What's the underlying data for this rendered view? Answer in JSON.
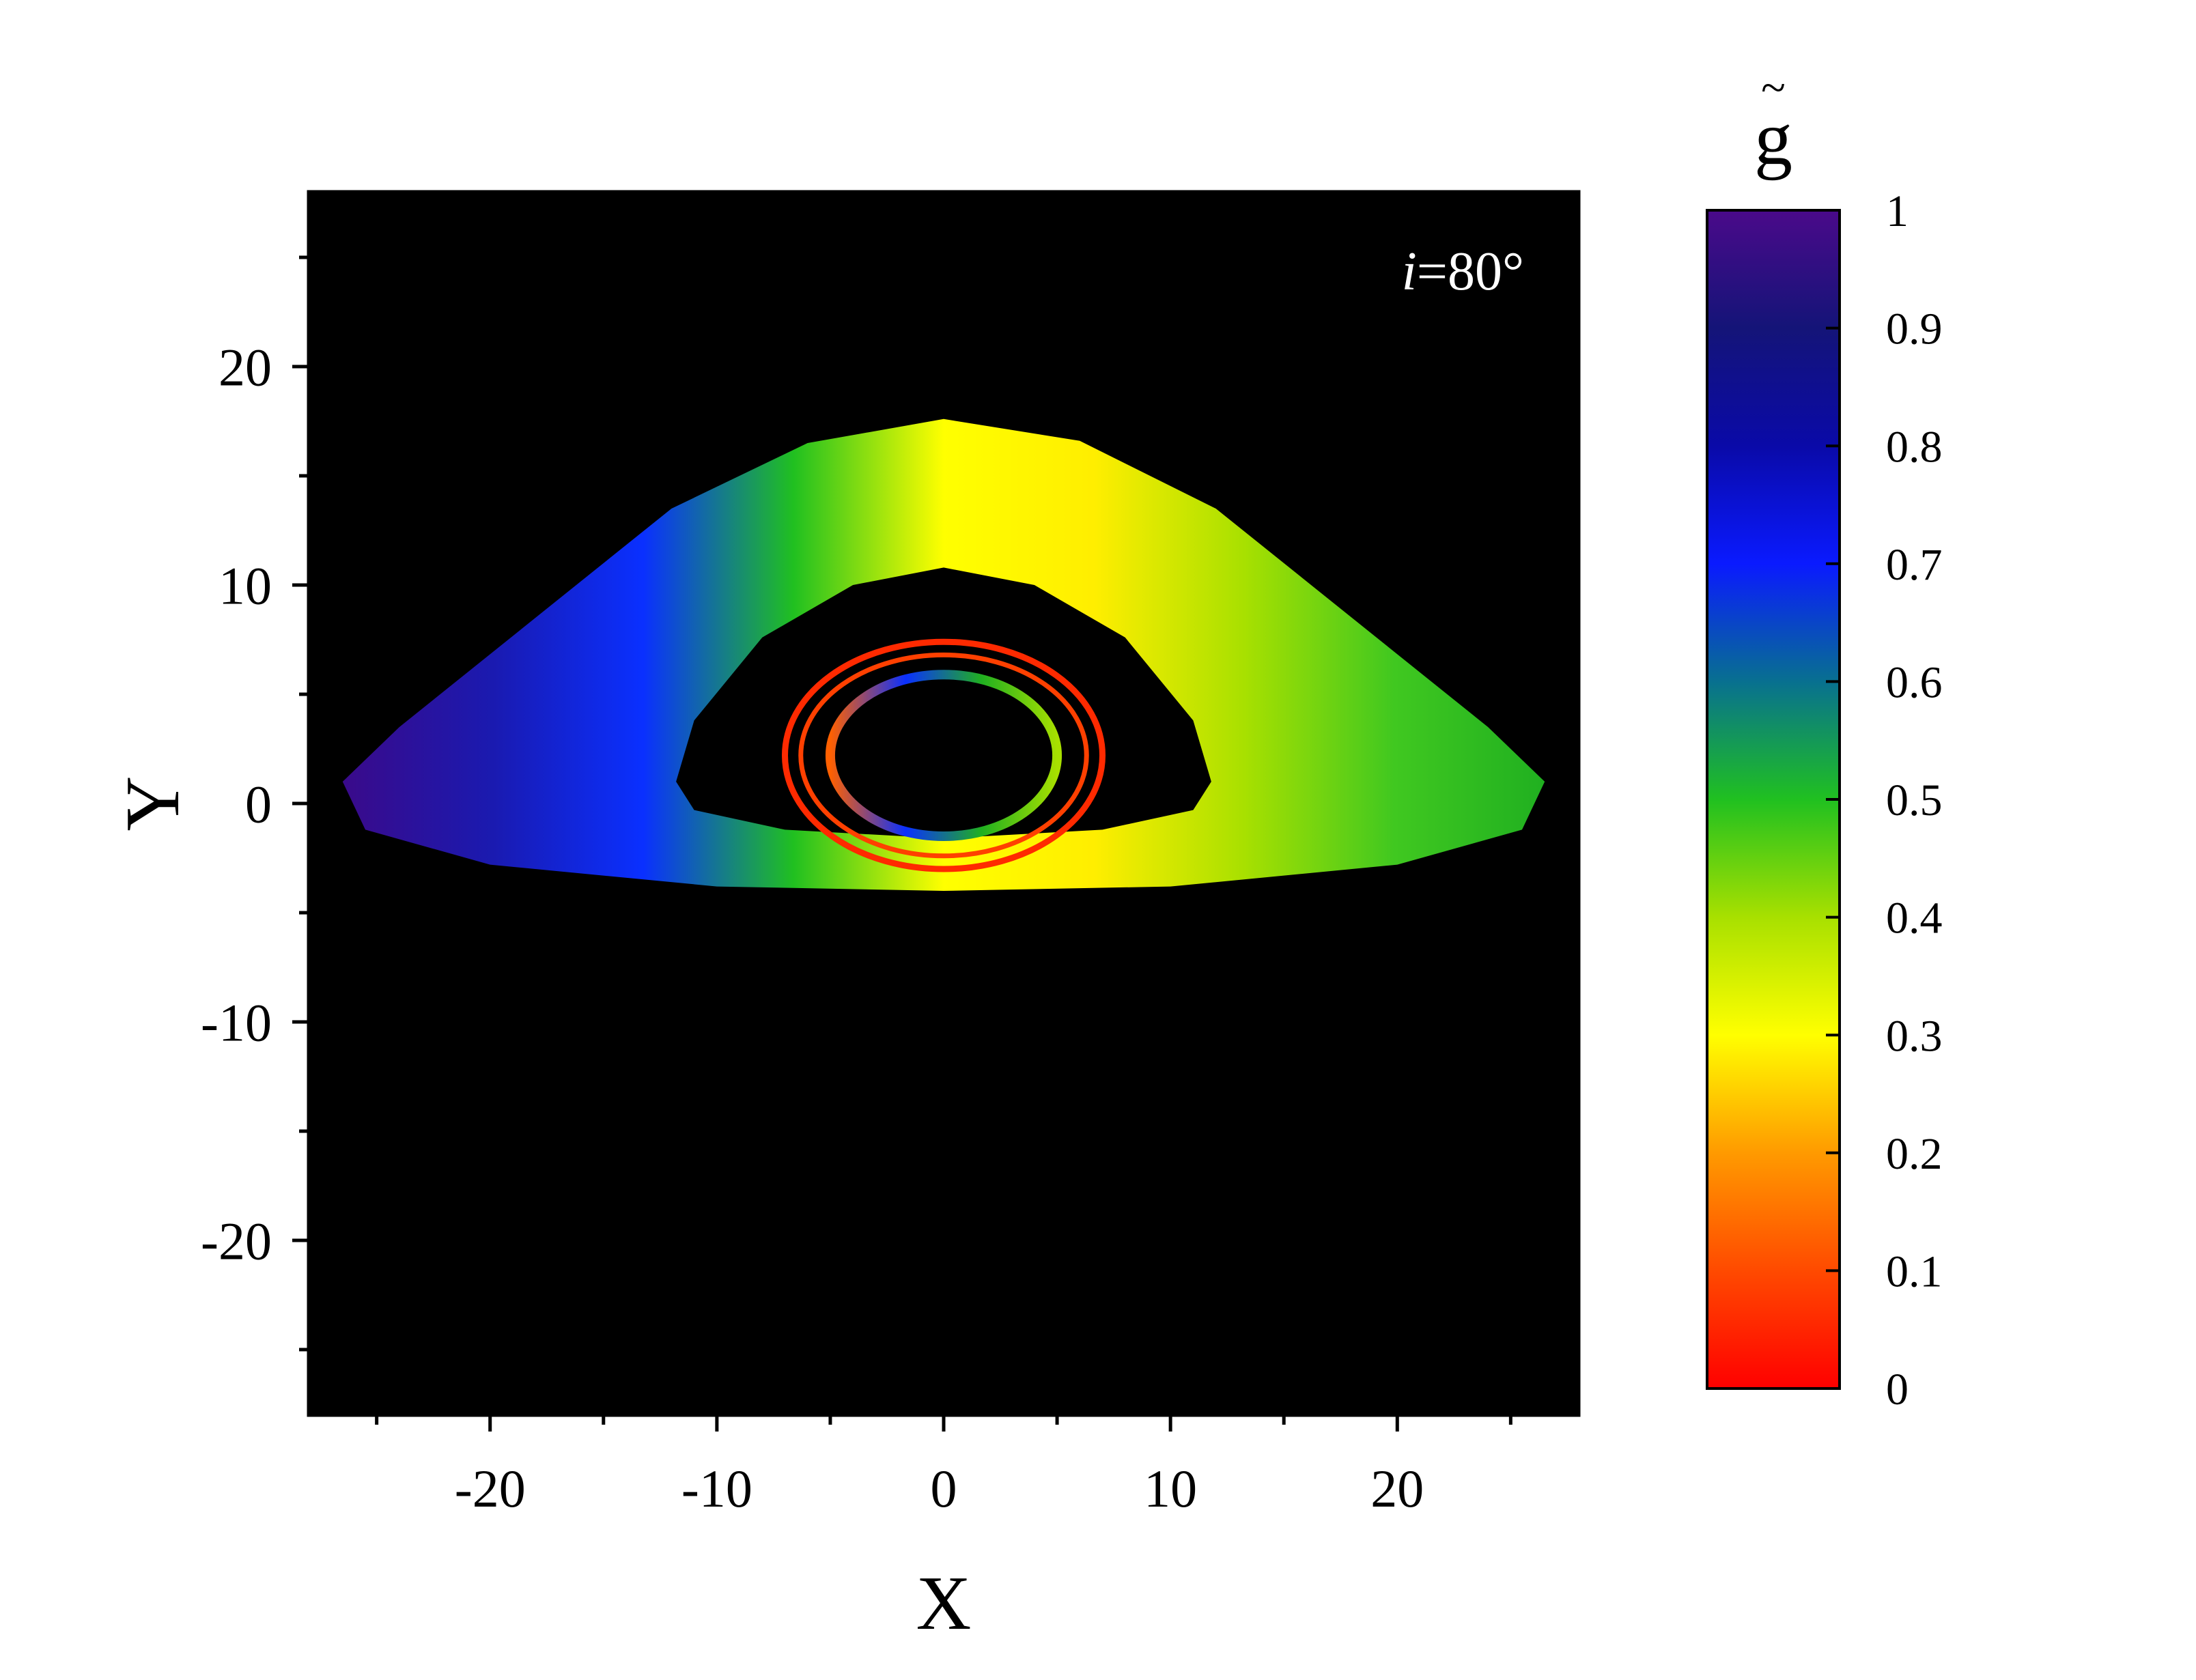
{
  "chart_data": {
    "type": "heatmap",
    "title": "",
    "xlabel": "X",
    "ylabel": "Y",
    "xlim": [
      -28,
      28
    ],
    "ylim": [
      -28,
      28
    ],
    "x_ticks": [
      -20,
      -10,
      0,
      10,
      20
    ],
    "y_ticks": [
      20,
      10,
      0,
      -10,
      -20
    ],
    "x_tick_labels": [
      "-20",
      "-10",
      "0",
      "10",
      "20"
    ],
    "y_tick_labels": [
      "20",
      "10",
      "0",
      "-10",
      "-20"
    ],
    "annotation": {
      "italic": "i",
      "text": "=80°"
    },
    "background_color": "#000000",
    "colorbar": {
      "label": "g",
      "label_accent": "~",
      "range": [
        0,
        1
      ],
      "ticks": [
        0,
        0.1,
        0.2,
        0.3,
        0.4,
        0.5,
        0.6,
        0.7,
        0.8,
        0.9,
        1
      ],
      "tick_labels": [
        "0",
        "0.1",
        "0.2",
        "0.3",
        "0.4",
        "0.5",
        "0.6",
        "0.7",
        "0.8",
        "0.9",
        "1"
      ],
      "colormap": [
        {
          "value": 0.0,
          "color": "#ff0000"
        },
        {
          "value": 0.1,
          "color": "#ff4a00"
        },
        {
          "value": 0.2,
          "color": "#ff9a00"
        },
        {
          "value": 0.3,
          "color": "#ffff00"
        },
        {
          "value": 0.4,
          "color": "#a8e000"
        },
        {
          "value": 0.5,
          "color": "#20c020"
        },
        {
          "value": 0.6,
          "color": "#087090"
        },
        {
          "value": 0.7,
          "color": "#0a1aff"
        },
        {
          "value": 0.8,
          "color": "#0a0aa8"
        },
        {
          "value": 0.9,
          "color": "#141478"
        },
        {
          "value": 1.0,
          "color": "#4a0a8a"
        }
      ]
    },
    "regions": [
      {
        "name": "primary-disk-image",
        "gradient": [
          "#3a0a8a",
          "#1a1ab0",
          "#0a30ff",
          "#20c020",
          "#ffff00",
          "#ffee00",
          "#a8e000",
          "#40c820",
          "#20b020"
        ],
        "outer": [
          [
            -26.5,
            1
          ],
          [
            -24,
            3.5
          ],
          [
            -18,
            8.5
          ],
          [
            -12,
            13.5
          ],
          [
            -6,
            16.5
          ],
          [
            0,
            17.6
          ],
          [
            6,
            16.6
          ],
          [
            12,
            13.5
          ],
          [
            18,
            8.5
          ],
          [
            24,
            3.5
          ],
          [
            26.5,
            1
          ],
          [
            25.5,
            -1.2
          ],
          [
            20,
            -2.8
          ],
          [
            10,
            -3.8
          ],
          [
            0,
            -4
          ],
          [
            -10,
            -3.8
          ],
          [
            -20,
            -2.8
          ],
          [
            -25.5,
            -1.2
          ]
        ],
        "inner": [
          [
            -11.8,
            1
          ],
          [
            -11,
            3.8
          ],
          [
            -8,
            7.6
          ],
          [
            -4,
            10
          ],
          [
            0,
            10.8
          ],
          [
            4,
            10
          ],
          [
            8,
            7.6
          ],
          [
            11,
            3.8
          ],
          [
            11.8,
            1
          ],
          [
            11,
            -0.3
          ],
          [
            7,
            -1.2
          ],
          [
            0,
            -1.6
          ],
          [
            -7,
            -1.2
          ],
          [
            -11,
            -0.3
          ]
        ]
      },
      {
        "name": "secondary-ring-outer",
        "color": "#ff2a00",
        "center": [
          0,
          2.2
        ],
        "radius_x": 7.0,
        "radius_y": 5.2
      },
      {
        "name": "secondary-ring-inner",
        "color": "#ff4000",
        "center": [
          0,
          2.2
        ],
        "radius_x": 6.3,
        "radius_y": 4.6
      },
      {
        "name": "higher-order-image",
        "gradient": [
          "#ff6000",
          "#0a30ff",
          "#20b020",
          "#a8e000"
        ],
        "center": [
          0,
          2.2
        ],
        "radius_x": 5.0,
        "radius_y": 3.7
      }
    ]
  }
}
